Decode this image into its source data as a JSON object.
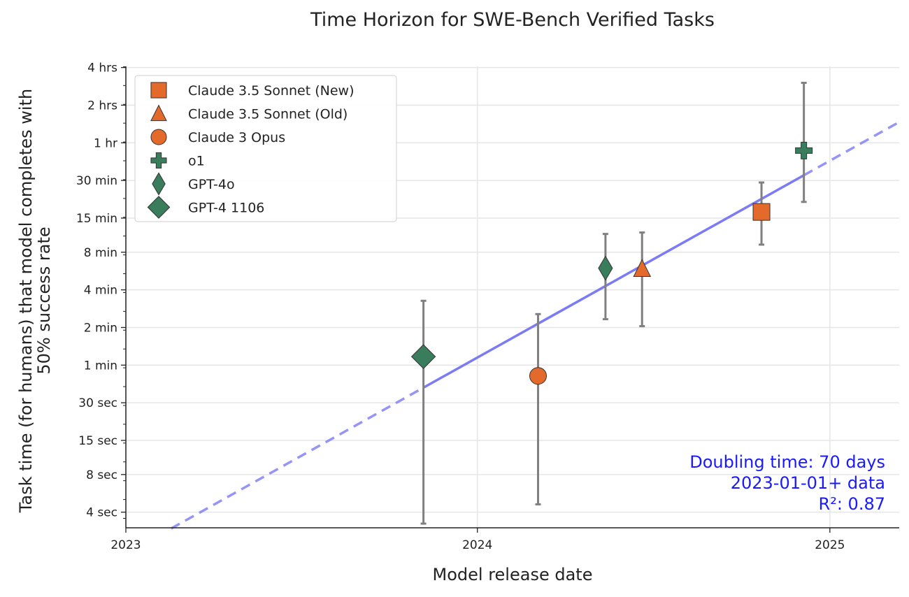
{
  "chart_data": {
    "type": "scatter",
    "title": "Time Horizon for SWE-Bench Verified Tasks",
    "xlabel": "Model release date",
    "ylabel": [
      "Task time (for humans) that model completes with",
      "50% success rate"
    ],
    "x_scale": "date",
    "y_scale": "log",
    "y_unit": "minutes",
    "xlim": [
      "2023-01-01",
      "2025-03-14"
    ],
    "ylim": [
      0.05,
      245
    ],
    "grid": true,
    "legend_placement": "top-left",
    "x_ticks": [
      {
        "value": "2023-01-01",
        "label": "2023"
      },
      {
        "value": "2024-01-01",
        "label": "2024"
      },
      {
        "value": "2025-01-01",
        "label": "2025"
      }
    ],
    "y_ticks": [
      {
        "value": 240,
        "label": "4 hrs"
      },
      {
        "value": 120,
        "label": "2 hrs"
      },
      {
        "value": 60,
        "label": "1 hr"
      },
      {
        "value": 30,
        "label": "30 min"
      },
      {
        "value": 15,
        "label": "15 min"
      },
      {
        "value": 8,
        "label": "8 min"
      },
      {
        "value": 4,
        "label": "4 min"
      },
      {
        "value": 2,
        "label": "2 min"
      },
      {
        "value": 1,
        "label": "1 min"
      },
      {
        "value": 0.5,
        "label": "30 sec"
      },
      {
        "value": 0.25,
        "label": "15 sec"
      },
      {
        "value": 0.1333,
        "label": "8 sec"
      },
      {
        "value": 0.0667,
        "label": "4 sec"
      }
    ],
    "series": [
      {
        "name": "Claude 3.5 Sonnet (New)",
        "marker": "square",
        "color": "#e46a2b",
        "date": "2024-10-22",
        "value": 16.8,
        "err_low": 9.2,
        "err_high": 28.9
      },
      {
        "name": "Claude 3.5 Sonnet (Old)",
        "marker": "triangle",
        "color": "#e46a2b",
        "date": "2024-06-20",
        "value": 5.9,
        "err_low": 2.05,
        "err_high": 11.5
      },
      {
        "name": "Claude 3 Opus",
        "marker": "circle",
        "color": "#e46a2b",
        "date": "2024-03-04",
        "value": 0.82,
        "err_low": 0.077,
        "err_high": 2.56
      },
      {
        "name": "o1",
        "marker": "plus",
        "color": "#3a7d5c",
        "date": "2024-12-05",
        "value": 52,
        "err_low": 20.2,
        "err_high": 181
      },
      {
        "name": "GPT-4o",
        "marker": "thin_diamond",
        "color": "#3a7d5c",
        "date": "2024-05-13",
        "value": 5.96,
        "err_low": 2.33,
        "err_high": 11.2
      },
      {
        "name": "GPT-4 1106",
        "marker": "diamond",
        "color": "#3a7d5c",
        "date": "2023-11-06",
        "value": 1.17,
        "err_low": 0.054,
        "err_high": 3.27
      }
    ],
    "trendline": {
      "color": "#7b7bf5",
      "doubling_days": 70,
      "anchor_date": "2024-01-01",
      "anchor_value": 1.15,
      "solid_range": [
        "2023-11-06",
        "2024-12-05"
      ],
      "dashed_range": [
        "2023-02-17",
        "2025-03-14"
      ]
    },
    "annotation": {
      "color": "#1a1aff",
      "lines": [
        "Doubling time: 70 days",
        "2023-01-01+ data",
        "R²: 0.87"
      ]
    }
  }
}
